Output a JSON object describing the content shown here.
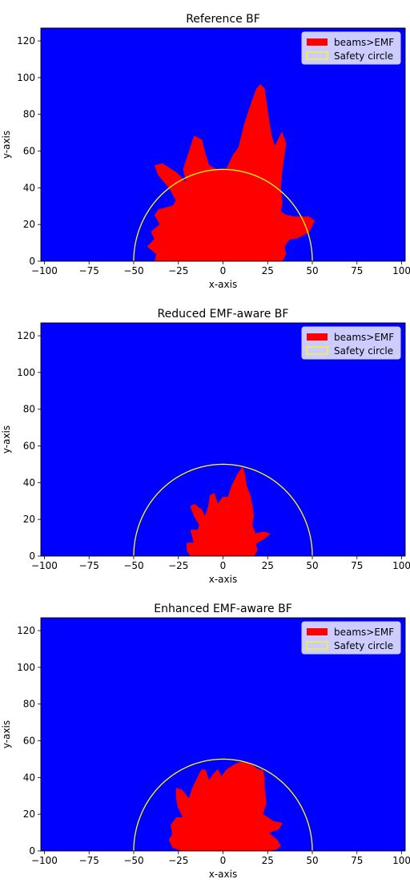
{
  "chart_data": [
    {
      "type": "heatmap",
      "title": "Reference BF",
      "xlabel": "x-axis",
      "ylabel": "y-axis",
      "xlim": [
        -102,
        102
      ],
      "ylim": [
        0,
        127
      ],
      "xticks": [
        -100,
        -75,
        -50,
        -25,
        0,
        25,
        50,
        75,
        100
      ],
      "yticks": [
        0,
        20,
        40,
        60,
        80,
        100,
        120
      ],
      "background_color": "#0000ff",
      "region_color": "#ff0000",
      "circle_color": "#ffff00",
      "legend": {
        "location": "top-right",
        "entries": [
          "beams>EMF",
          "Safety circle"
        ]
      },
      "safety_circle": {
        "center": [
          0,
          0
        ],
        "radius": 50
      },
      "region_polygon": [
        [
          -38,
          0
        ],
        [
          -37,
          4
        ],
        [
          -42,
          8
        ],
        [
          -38,
          12
        ],
        [
          -40,
          16
        ],
        [
          -35,
          20
        ],
        [
          -38,
          25
        ],
        [
          -36,
          28
        ],
        [
          -28,
          30
        ],
        [
          -26,
          33
        ],
        [
          -30,
          40
        ],
        [
          -36,
          47
        ],
        [
          -38,
          52
        ],
        [
          -34,
          53
        ],
        [
          -26,
          48
        ],
        [
          -20,
          42
        ],
        [
          -22,
          50
        ],
        [
          -18,
          62
        ],
        [
          -16,
          68
        ],
        [
          -12,
          66
        ],
        [
          -10,
          58
        ],
        [
          -8,
          52
        ],
        [
          -4,
          50
        ],
        [
          2,
          50
        ],
        [
          6,
          58
        ],
        [
          9,
          62
        ],
        [
          12,
          74
        ],
        [
          16,
          86
        ],
        [
          19,
          94
        ],
        [
          21,
          96
        ],
        [
          23,
          94
        ],
        [
          25,
          80
        ],
        [
          27,
          68
        ],
        [
          29,
          62
        ],
        [
          31,
          66
        ],
        [
          33,
          70
        ],
        [
          35,
          64
        ],
        [
          33,
          50
        ],
        [
          32,
          40
        ],
        [
          33,
          32
        ],
        [
          32,
          27
        ],
        [
          35,
          25
        ],
        [
          40,
          24
        ],
        [
          48,
          24
        ],
        [
          51,
          22
        ],
        [
          48,
          16
        ],
        [
          42,
          13
        ],
        [
          37,
          12
        ],
        [
          34,
          8
        ],
        [
          35,
          4
        ],
        [
          33,
          0
        ]
      ]
    },
    {
      "type": "heatmap",
      "title": "Reduced EMF-aware BF",
      "xlabel": "x-axis",
      "ylabel": "y-axis",
      "xlim": [
        -102,
        102
      ],
      "ylim": [
        0,
        127
      ],
      "xticks": [
        -100,
        -75,
        -50,
        -25,
        0,
        25,
        50,
        75,
        100
      ],
      "yticks": [
        0,
        20,
        40,
        60,
        80,
        100,
        120
      ],
      "background_color": "#0000ff",
      "region_color": "#ff0000",
      "circle_color": "#ffff00",
      "legend": {
        "location": "top-right",
        "entries": [
          "beams>EMF",
          "Safety circle"
        ]
      },
      "safety_circle": {
        "center": [
          0,
          0
        ],
        "radius": 50
      },
      "region_polygon": [
        [
          -18,
          0
        ],
        [
          -20,
          3
        ],
        [
          -20,
          7
        ],
        [
          -16,
          7
        ],
        [
          -17,
          11
        ],
        [
          -18,
          14
        ],
        [
          -14,
          14
        ],
        [
          -13,
          17
        ],
        [
          -16,
          22
        ],
        [
          -18,
          27
        ],
        [
          -16,
          28
        ],
        [
          -12,
          25
        ],
        [
          -10,
          21
        ],
        [
          -8,
          27
        ],
        [
          -7,
          33
        ],
        [
          -5,
          34
        ],
        [
          -3,
          28
        ],
        [
          0,
          32
        ],
        [
          3,
          32
        ],
        [
          5,
          38
        ],
        [
          8,
          44
        ],
        [
          10,
          47
        ],
        [
          11,
          48
        ],
        [
          12,
          44
        ],
        [
          13,
          38
        ],
        [
          15,
          33
        ],
        [
          16,
          28
        ],
        [
          17,
          22
        ],
        [
          16,
          17
        ],
        [
          18,
          12
        ],
        [
          23,
          13
        ],
        [
          26,
          12
        ],
        [
          22,
          9
        ],
        [
          18,
          7
        ],
        [
          19,
          3
        ],
        [
          17,
          0
        ]
      ]
    },
    {
      "type": "heatmap",
      "title": "Enhanced EMF-aware BF",
      "xlabel": "x-axis",
      "ylabel": "y-axis",
      "xlim": [
        -102,
        102
      ],
      "ylim": [
        0,
        127
      ],
      "xticks": [
        -100,
        -75,
        -50,
        -25,
        0,
        25,
        50,
        75,
        100
      ],
      "yticks": [
        0,
        20,
        40,
        60,
        80,
        100,
        120
      ],
      "background_color": "#0000ff",
      "region_color": "#ff0000",
      "circle_color": "#ffff00",
      "legend": {
        "location": "top-right",
        "entries": [
          "beams>EMF",
          "Safety circle"
        ]
      },
      "safety_circle": {
        "center": [
          0,
          0
        ],
        "radius": 50
      },
      "region_polygon": [
        [
          -28,
          2
        ],
        [
          -30,
          6
        ],
        [
          -28,
          9
        ],
        [
          -29,
          14
        ],
        [
          -26,
          18
        ],
        [
          -22,
          18
        ],
        [
          -25,
          24
        ],
        [
          -26,
          29
        ],
        [
          -26,
          34
        ],
        [
          -23,
          33
        ],
        [
          -19,
          28
        ],
        [
          -17,
          34
        ],
        [
          -14,
          40
        ],
        [
          -12,
          44
        ],
        [
          -10,
          44
        ],
        [
          -8,
          38
        ],
        [
          -5,
          42
        ],
        [
          -3,
          44
        ],
        [
          -1,
          40
        ],
        [
          2,
          44
        ],
        [
          5,
          46
        ],
        [
          9,
          48
        ],
        [
          13,
          48
        ],
        [
          17,
          46
        ],
        [
          20,
          44
        ],
        [
          22,
          44
        ],
        [
          23,
          40
        ],
        [
          23,
          34
        ],
        [
          24,
          26
        ],
        [
          22,
          20
        ],
        [
          28,
          16
        ],
        [
          33,
          15
        ],
        [
          31,
          12
        ],
        [
          25,
          10
        ],
        [
          30,
          6
        ],
        [
          32,
          3
        ],
        [
          30,
          1
        ],
        [
          22,
          0
        ],
        [
          -10,
          0
        ],
        [
          -22,
          0
        ]
      ]
    }
  ]
}
